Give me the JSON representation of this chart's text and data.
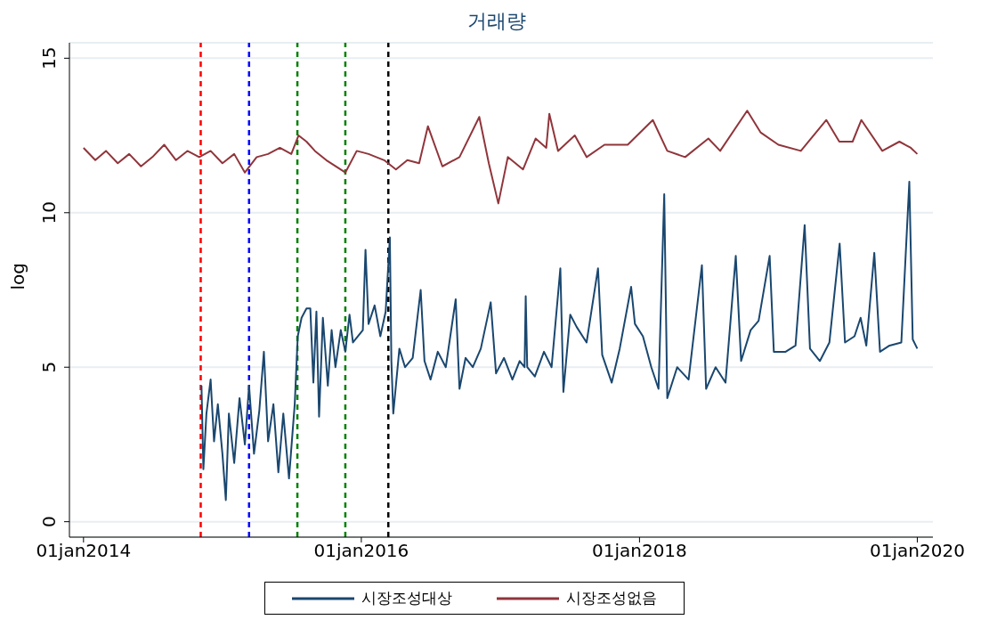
{
  "chart_data": {
    "type": "line",
    "title": "거래량",
    "ylabel": "log",
    "xlim": [
      "2013-11-25",
      "2020-02-11"
    ],
    "ylim": [
      -0.5,
      15.5
    ],
    "xticks": [
      {
        "value": "2014-01-01",
        "label": "01jan2014"
      },
      {
        "value": "2016-01-01",
        "label": "01jan2016"
      },
      {
        "value": "2018-01-01",
        "label": "01jan2018"
      },
      {
        "value": "2020-01-01",
        "label": "01jan2020"
      }
    ],
    "yticks": [
      0,
      5,
      10,
      15
    ],
    "grid": "y",
    "legend": "bottom",
    "marker": "none",
    "line_style": "solid",
    "series": [
      {
        "name": "시장조성대상",
        "color": "#1a476f",
        "x": [
          "2014-11-07",
          "2014-11-12",
          "2014-11-20",
          "2014-12-01",
          "2014-12-10",
          "2014-12-20",
          "2015-01-01",
          "2015-01-10",
          "2015-01-18",
          "2015-02-01",
          "2015-02-15",
          "2015-03-01",
          "2015-03-12",
          "2015-03-25",
          "2015-04-08",
          "2015-04-20",
          "2015-05-01",
          "2015-05-15",
          "2015-05-28",
          "2015-06-10",
          "2015-06-25",
          "2015-07-10",
          "2015-07-18",
          "2015-07-28",
          "2015-08-10",
          "2015-08-20",
          "2015-08-28",
          "2015-09-05",
          "2015-09-12",
          "2015-09-22",
          "2015-10-05",
          "2015-10-15",
          "2015-10-25",
          "2015-11-08",
          "2015-11-20",
          "2015-12-01",
          "2015-12-10",
          "2016-01-05",
          "2016-01-12",
          "2016-01-20",
          "2016-02-05",
          "2016-02-20",
          "2016-03-05",
          "2016-03-16",
          "2016-03-20",
          "2016-03-25",
          "2016-04-10",
          "2016-04-25",
          "2016-05-15",
          "2016-06-05",
          "2016-06-15",
          "2016-07-01",
          "2016-07-20",
          "2016-08-10",
          "2016-09-05",
          "2016-09-15",
          "2016-10-01",
          "2016-10-20",
          "2016-11-10",
          "2016-12-06",
          "2016-12-20",
          "2017-01-10",
          "2017-02-01",
          "2017-02-20",
          "2017-03-05",
          "2017-03-08",
          "2017-03-12",
          "2017-04-01",
          "2017-04-25",
          "2017-05-15",
          "2017-06-07",
          "2017-06-15",
          "2017-07-03",
          "2017-07-20",
          "2017-08-15",
          "2017-09-14",
          "2017-09-25",
          "2017-10-20",
          "2017-11-10",
          "2017-12-10",
          "2017-12-20",
          "2018-01-10",
          "2018-02-01",
          "2018-02-20",
          "2018-03-07",
          "2018-03-15",
          "2018-04-10",
          "2018-05-10",
          "2018-06-14",
          "2018-06-25",
          "2018-07-20",
          "2018-08-15",
          "2018-09-11",
          "2018-09-25",
          "2018-10-20",
          "2018-11-10",
          "2018-12-09",
          "2018-12-20",
          "2019-01-20",
          "2019-02-15",
          "2019-03-11",
          "2019-03-25",
          "2019-04-20",
          "2019-05-15",
          "2019-06-11",
          "2019-06-25",
          "2019-07-20",
          "2019-08-05",
          "2019-08-20",
          "2019-09-10",
          "2019-09-25",
          "2019-10-20",
          "2019-11-20",
          "2019-12-11",
          "2019-12-20",
          "2020-01-01"
        ],
        "values": [
          4.4,
          1.7,
          3.5,
          4.6,
          2.6,
          3.8,
          2.2,
          0.7,
          3.5,
          1.9,
          4.0,
          2.5,
          4.4,
          2.2,
          3.6,
          5.5,
          2.6,
          3.8,
          1.6,
          3.5,
          1.4,
          3.8,
          6.0,
          6.6,
          6.9,
          6.9,
          4.5,
          6.8,
          3.4,
          6.6,
          4.4,
          6.2,
          5.0,
          6.2,
          5.5,
          6.7,
          5.8,
          6.2,
          8.8,
          6.4,
          7.0,
          6.0,
          6.8,
          9.2,
          5.2,
          3.5,
          5.6,
          5.0,
          5.3,
          7.5,
          5.2,
          4.6,
          5.5,
          5.0,
          7.2,
          4.3,
          5.3,
          5.0,
          5.6,
          7.1,
          4.8,
          5.3,
          4.6,
          5.2,
          5.0,
          7.3,
          5.0,
          4.7,
          5.5,
          5.0,
          8.2,
          4.2,
          6.7,
          6.3,
          5.8,
          8.2,
          5.4,
          4.5,
          5.6,
          7.6,
          6.4,
          6.0,
          5.0,
          4.3,
          10.6,
          4.0,
          5.0,
          4.6,
          8.3,
          4.3,
          5.0,
          4.5,
          8.6,
          5.2,
          6.2,
          6.5,
          8.6,
          5.5,
          5.5,
          5.7,
          9.6,
          5.6,
          5.2,
          5.8,
          9.0,
          5.8,
          6.0,
          6.6,
          5.7,
          8.7,
          5.5,
          5.7,
          5.8,
          11.0,
          5.9,
          5.6
        ]
      },
      {
        "name": "시장조성없음",
        "color": "#90353b",
        "x": [
          "2014-01-01",
          "2014-02-01",
          "2014-03-01",
          "2014-04-01",
          "2014-05-01",
          "2014-06-01",
          "2014-07-01",
          "2014-08-01",
          "2014-09-01",
          "2014-10-01",
          "2014-11-01",
          "2014-12-01",
          "2015-01-01",
          "2015-02-01",
          "2015-03-01",
          "2015-04-01",
          "2015-05-01",
          "2015-06-01",
          "2015-07-01",
          "2015-07-20",
          "2015-08-10",
          "2015-09-01",
          "2015-10-01",
          "2015-11-20",
          "2015-12-20",
          "2016-01-20",
          "2016-03-01",
          "2016-04-01",
          "2016-05-01",
          "2016-06-01",
          "2016-06-24",
          "2016-08-01",
          "2016-09-15",
          "2016-11-06",
          "2016-12-01",
          "2016-12-26",
          "2017-01-20",
          "2017-03-01",
          "2017-04-03",
          "2017-05-01",
          "2017-05-09",
          "2017-06-01",
          "2017-07-15",
          "2017-08-15",
          "2017-10-01",
          "2017-12-01",
          "2018-02-05",
          "2018-03-15",
          "2018-05-01",
          "2018-07-01",
          "2018-08-01",
          "2018-10-11",
          "2018-11-15",
          "2019-01-01",
          "2019-03-01",
          "2019-05-07",
          "2019-06-10",
          "2019-07-15",
          "2019-08-07",
          "2019-10-01",
          "2019-11-15",
          "2019-12-15",
          "2020-01-01"
        ],
        "values": [
          12.1,
          11.7,
          12.0,
          11.6,
          11.9,
          11.5,
          11.8,
          12.2,
          11.7,
          12.0,
          11.8,
          12.0,
          11.6,
          11.9,
          11.3,
          11.8,
          11.9,
          12.1,
          11.9,
          12.5,
          12.3,
          12.0,
          11.7,
          11.3,
          12.0,
          11.9,
          11.7,
          11.4,
          11.7,
          11.6,
          12.8,
          11.5,
          11.8,
          13.1,
          11.6,
          10.3,
          11.8,
          11.4,
          12.4,
          12.1,
          13.2,
          12.0,
          12.5,
          11.8,
          12.2,
          12.2,
          13.0,
          12.0,
          11.8,
          12.4,
          12.0,
          13.3,
          12.6,
          12.2,
          12.0,
          13.0,
          12.3,
          12.3,
          13.0,
          12.0,
          12.3,
          12.1,
          11.9
        ]
      }
    ],
    "ref_lines": [
      {
        "axis": "x",
        "value": "2014-11-05",
        "color": "#ff0000",
        "line_style": "dashed"
      },
      {
        "axis": "x",
        "value": "2015-03-12",
        "color": "#0000ff",
        "line_style": "dashed"
      },
      {
        "axis": "x",
        "value": "2015-07-17",
        "color": "#008000",
        "line_style": "dashed"
      },
      {
        "axis": "x",
        "value": "2015-11-20",
        "color": "#008000",
        "line_style": "dashed"
      },
      {
        "axis": "x",
        "value": "2016-03-12",
        "color": "#000000",
        "line_style": "dashed"
      }
    ]
  }
}
